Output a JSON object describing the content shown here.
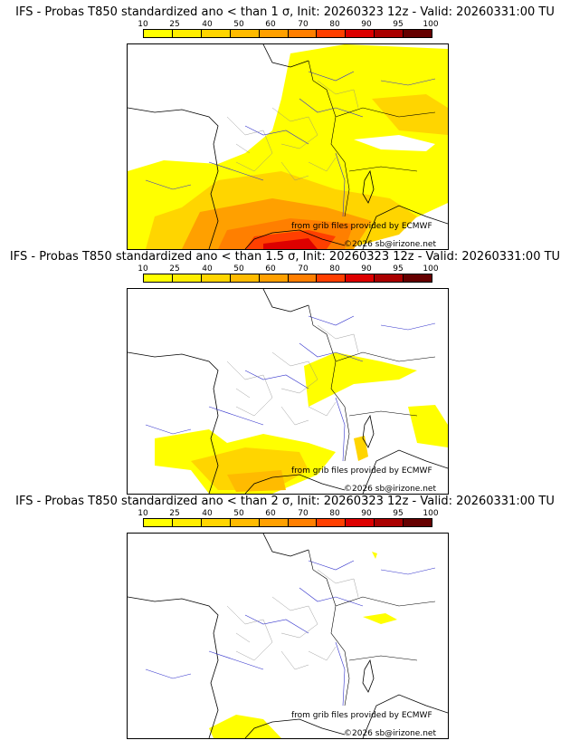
{
  "scale": {
    "labels": [
      "10",
      "25",
      "40",
      "50",
      "60",
      "70",
      "80",
      "90",
      "95",
      "100"
    ],
    "colors": [
      "#ffff00",
      "#ffee00",
      "#ffd500",
      "#ffbb00",
      "#ffa000",
      "#ff7f00",
      "#ff3f00",
      "#dd0000",
      "#aa0000",
      "#660000"
    ]
  },
  "panels": [
    {
      "title": "IFS - Probas T850  standardized ano < than 1 σ, Init: 20260323 12z - Valid: 20260331:00 TU",
      "credit_source": "from grib files provided by ECMWF",
      "credit_copyright": "©2026 sb@irizone.net"
    },
    {
      "title": "IFS - Probas T850  standardized ano < than 1.5 σ, Init: 20260323 12z - Valid: 20260331:00 TU",
      "credit_source": "from grib files provided by ECMWF",
      "credit_copyright": "©2026 sb@irizone.net"
    },
    {
      "title": "IFS - Probas T850  standardized ano < than 2 σ, Init: 20260323 12z - Valid: 20260331:00 TU",
      "credit_source": "from grib files provided by ECMWF",
      "credit_copyright": "©2026 sb@irizone.net"
    }
  ]
}
